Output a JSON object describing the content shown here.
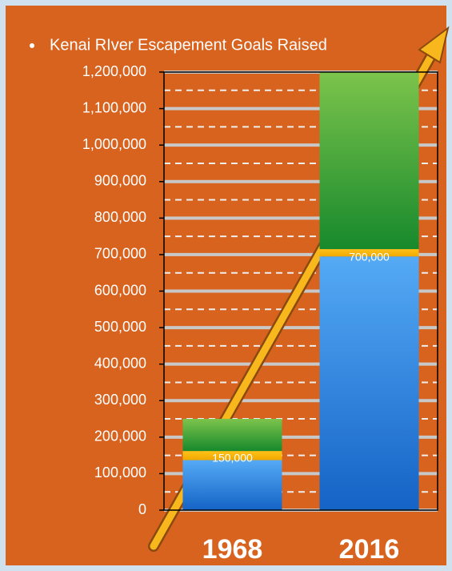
{
  "chart_data": {
    "type": "stacked-bar",
    "title": "Kenai RIver Escapement Goals Raised",
    "categories": [
      "1968",
      "2016"
    ],
    "series": [
      {
        "color": "#2f86e0",
        "values": [
          137000,
          695000
        ]
      },
      {
        "color": "#f7b500",
        "values": [
          25000,
          20000
        ]
      },
      {
        "color": "#3aa33a",
        "values": [
          88000,
          485000
        ]
      }
    ],
    "annotations": [
      {
        "value": 150000,
        "label": "150,000"
      },
      {
        "value": 700000,
        "label": "700,000"
      }
    ],
    "ylim": [
      0,
      1200000
    ],
    "yticks": [
      0,
      {
        "value": 100000,
        "label": "100,000"
      },
      {
        "value": 200000,
        "label": "200,000"
      },
      {
        "value": 300000,
        "label": "300,000"
      },
      {
        "value": 400000,
        "label": "400,000"
      },
      {
        "value": 500000,
        "label": "500,000"
      },
      {
        "value": 600000,
        "label": "600,000"
      },
      {
        "value": 700000,
        "label": "700,000"
      },
      {
        "value": 800000,
        "label": "800,000"
      },
      {
        "value": 900000,
        "label": "900,000"
      },
      {
        "value": 1000000,
        "label": "1,000,000"
      },
      {
        "value": 1100000,
        "label": "1,100,000"
      },
      {
        "value": 1200000,
        "label": "1,200,000"
      }
    ],
    "minor_yticks": [
      50000,
      150000,
      250000,
      350000,
      450000,
      550000,
      650000,
      750000,
      850000,
      950000,
      1050000,
      1150000
    ],
    "grid": true
  }
}
